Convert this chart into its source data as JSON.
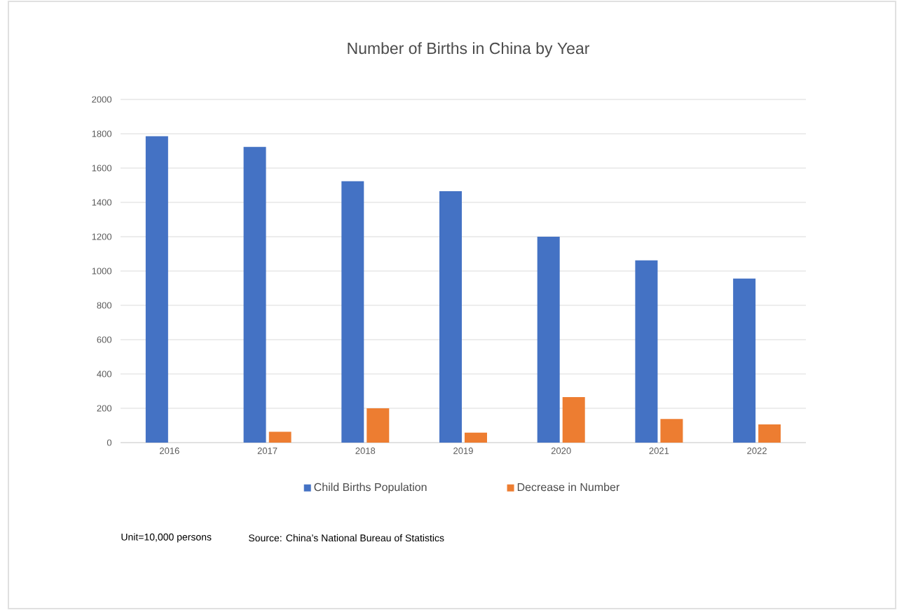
{
  "chart_data": {
    "type": "bar",
    "title": "Number of Births in China by Year",
    "categories": [
      "2016",
      "2017",
      "2018",
      "2019",
      "2020",
      "2021",
      "2022"
    ],
    "series": [
      {
        "name": "Child Births Population",
        "color": "#4472c4",
        "values": [
          1786,
          1723,
          1523,
          1465,
          1200,
          1062,
          956
        ]
      },
      {
        "name": "Decrease in Number",
        "color": "#ed7d31",
        "values": [
          null,
          63,
          200,
          58,
          265,
          138,
          106
        ]
      }
    ],
    "ylim": [
      0,
      2000
    ],
    "yticks": [
      0,
      200,
      400,
      600,
      800,
      1000,
      1200,
      1400,
      1600,
      1800,
      2000
    ],
    "grid": "y",
    "legend": "bottom",
    "annotations": [
      "Unit=10,000 persons",
      "Source: China’s National Bureau of Statistics"
    ]
  }
}
